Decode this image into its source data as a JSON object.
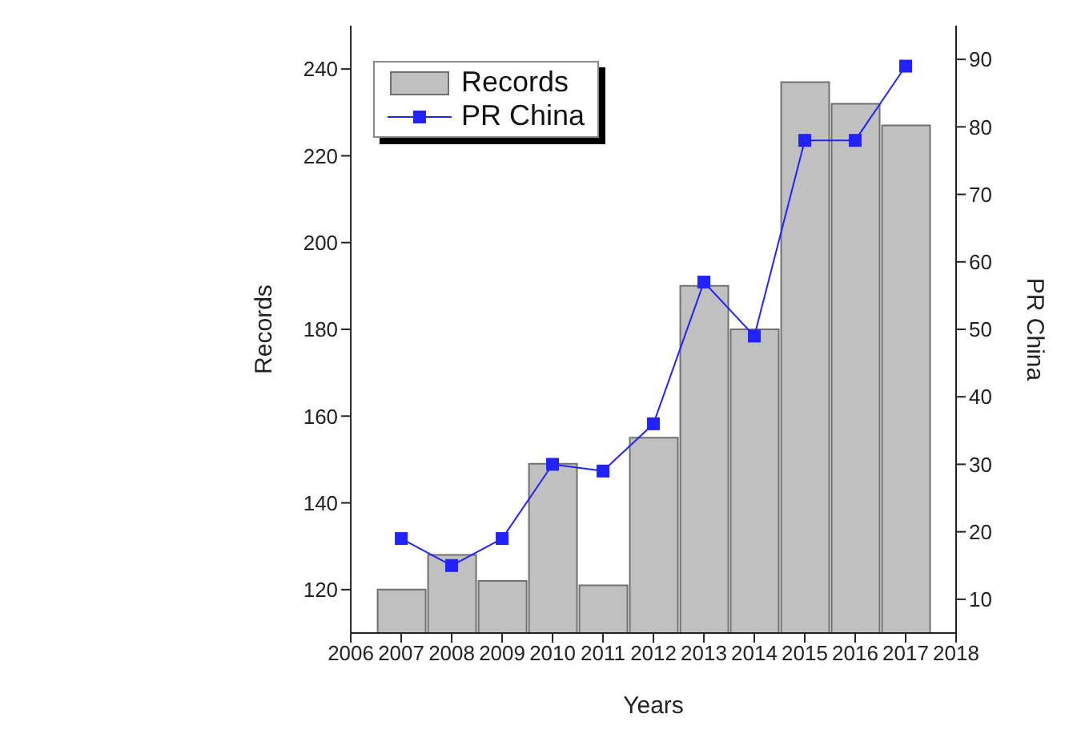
{
  "chart_data": {
    "type": "bar",
    "xlabel": "Years",
    "ylabel": "Records",
    "y2label": "PR China",
    "x": [
      2007,
      2008,
      2009,
      2010,
      2011,
      2012,
      2013,
      2014,
      2015,
      2016,
      2017
    ],
    "series": [
      {
        "name": "Records",
        "color": "#c0c0c0",
        "values": [
          120,
          128,
          122,
          149,
          121,
          155,
          190,
          180,
          237,
          232,
          227
        ]
      },
      {
        "name": "PR China",
        "type": "line",
        "axis": "y2",
        "color": "#2222ff",
        "marker": "square",
        "values": [
          19,
          15,
          19,
          30,
          29,
          36,
          57,
          49,
          78,
          78,
          89
        ]
      }
    ],
    "xlim": [
      2006,
      2018
    ],
    "xticks": [
      2006,
      2007,
      2008,
      2009,
      2010,
      2011,
      2012,
      2013,
      2014,
      2015,
      2016,
      2017,
      2018
    ],
    "ylim": [
      110,
      250
    ],
    "yticks": [
      120,
      140,
      160,
      180,
      200,
      220,
      240
    ],
    "y2lim": [
      5,
      95
    ],
    "y2ticks": [
      10,
      20,
      30,
      40,
      50,
      60,
      70,
      80,
      90
    ],
    "legend": "top left",
    "grid": false
  }
}
